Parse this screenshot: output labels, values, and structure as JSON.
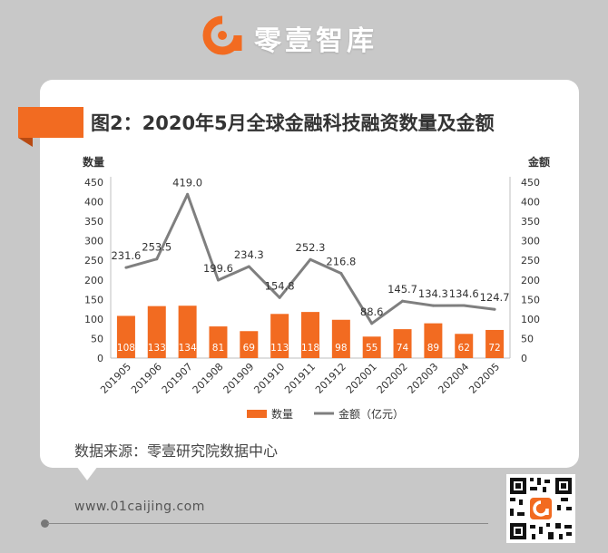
{
  "brand": {
    "name": "零壹智库",
    "logo_icon": "brand-logo-icon",
    "accent_color": "#f26b21"
  },
  "header": {
    "title": "图2：2020年5月全球金融科技融资数量及金额"
  },
  "chart_data": {
    "type": "bar",
    "title": "图2：2020年5月全球金融科技融资数量及金额",
    "categories": [
      "201905",
      "201906",
      "201907",
      "201908",
      "201909",
      "201910",
      "201911",
      "201912",
      "202001",
      "202002",
      "202003",
      "202004",
      "202005"
    ],
    "left_axis_title": "数量",
    "right_axis_title": "金额",
    "ylim": [
      0,
      450
    ],
    "yticks": [
      "0",
      "50",
      "100",
      "150",
      "200",
      "250",
      "300",
      "350",
      "400",
      "450"
    ],
    "series": [
      {
        "name": "数量",
        "type": "bar",
        "axis": "left",
        "color": "#f26b21",
        "values": [
          108,
          133,
          134,
          81,
          69,
          113,
          118,
          98,
          55,
          74,
          89,
          62,
          72
        ],
        "labels": [
          "108",
          "133",
          "134",
          "81",
          "69",
          "113",
          "118",
          "98",
          "55",
          "74",
          "89",
          "62",
          "72"
        ]
      },
      {
        "name": "金额（亿元）",
        "type": "line",
        "axis": "right",
        "color": "#7f7f7f",
        "values": [
          231.6,
          253.5,
          419.0,
          199.6,
          234.3,
          154.8,
          252.3,
          216.8,
          88.6,
          145.7,
          134.3,
          134.6,
          124.7
        ],
        "labels": [
          "231.6",
          "253.5",
          "419.0",
          "199.6",
          "234.3",
          "154.8",
          "252.3",
          "216.8",
          "88.6",
          "145.7",
          "134.3",
          "134.6",
          "124.7"
        ]
      }
    ],
    "grid": false,
    "legend_position": "bottom"
  },
  "footer": {
    "source": "数据来源：零壹研究院数据中心",
    "website": "www.01caijing.com",
    "qr_icon": "qr-code-icon"
  }
}
